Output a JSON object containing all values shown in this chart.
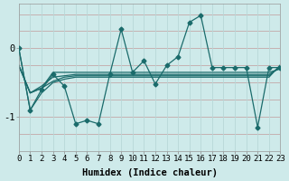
{
  "xlabel": "Humidex (Indice chaleur)",
  "bg_color": "#ceeaea",
  "line_color": "#1a6b6b",
  "grid_h_color": "#c4a8a8",
  "grid_v_color": "#b8d8d8",
  "xlim": [
    0,
    23
  ],
  "ylim": [
    -1.5,
    0.65
  ],
  "yticks": [
    -1,
    0
  ],
  "xticks": [
    0,
    1,
    2,
    3,
    4,
    5,
    6,
    7,
    8,
    9,
    10,
    11,
    12,
    13,
    14,
    15,
    16,
    17,
    18,
    19,
    20,
    21,
    22,
    23
  ],
  "main_series": [
    0.0,
    -0.9,
    -0.6,
    -0.38,
    -0.55,
    -1.1,
    -1.05,
    -1.1,
    -0.38,
    0.28,
    -0.35,
    -0.18,
    -0.52,
    -0.25,
    -0.12,
    0.38,
    0.48,
    -0.28,
    -0.28,
    -0.28,
    -0.28,
    -1.15,
    -0.28,
    -0.28
  ],
  "line2": [
    -0.25,
    -0.65,
    -0.58,
    -0.35,
    -0.35,
    -0.35,
    -0.35,
    -0.35,
    -0.35,
    -0.35,
    -0.35,
    -0.35,
    -0.35,
    -0.35,
    -0.35,
    -0.35,
    -0.35,
    -0.35,
    -0.35,
    -0.35,
    -0.35,
    -0.35,
    -0.35,
    -0.3
  ],
  "line3": [
    -0.25,
    -0.65,
    -0.55,
    -0.42,
    -0.4,
    -0.38,
    -0.38,
    -0.38,
    -0.38,
    -0.38,
    -0.38,
    -0.38,
    -0.38,
    -0.38,
    -0.38,
    -0.38,
    -0.38,
    -0.38,
    -0.38,
    -0.38,
    -0.38,
    -0.38,
    -0.38,
    -0.28
  ],
  "line4": [
    -0.25,
    -0.65,
    -0.58,
    -0.48,
    -0.42,
    -0.4,
    -0.4,
    -0.4,
    -0.4,
    -0.4,
    -0.4,
    -0.4,
    -0.4,
    -0.4,
    -0.4,
    -0.4,
    -0.4,
    -0.4,
    -0.4,
    -0.4,
    -0.4,
    -0.4,
    -0.4,
    -0.26
  ],
  "line5": [
    0.0,
    -0.9,
    -0.65,
    -0.5,
    -0.45,
    -0.42,
    -0.42,
    -0.42,
    -0.42,
    -0.42,
    -0.42,
    -0.42,
    -0.42,
    -0.42,
    -0.42,
    -0.42,
    -0.42,
    -0.42,
    -0.42,
    -0.42,
    -0.42,
    -0.42,
    -0.42,
    -0.24
  ],
  "marker": "D",
  "markersize": 2.5,
  "linewidth": 0.9,
  "fontsize_xlabel": 7.5,
  "fontsize_ticks": 6.5
}
